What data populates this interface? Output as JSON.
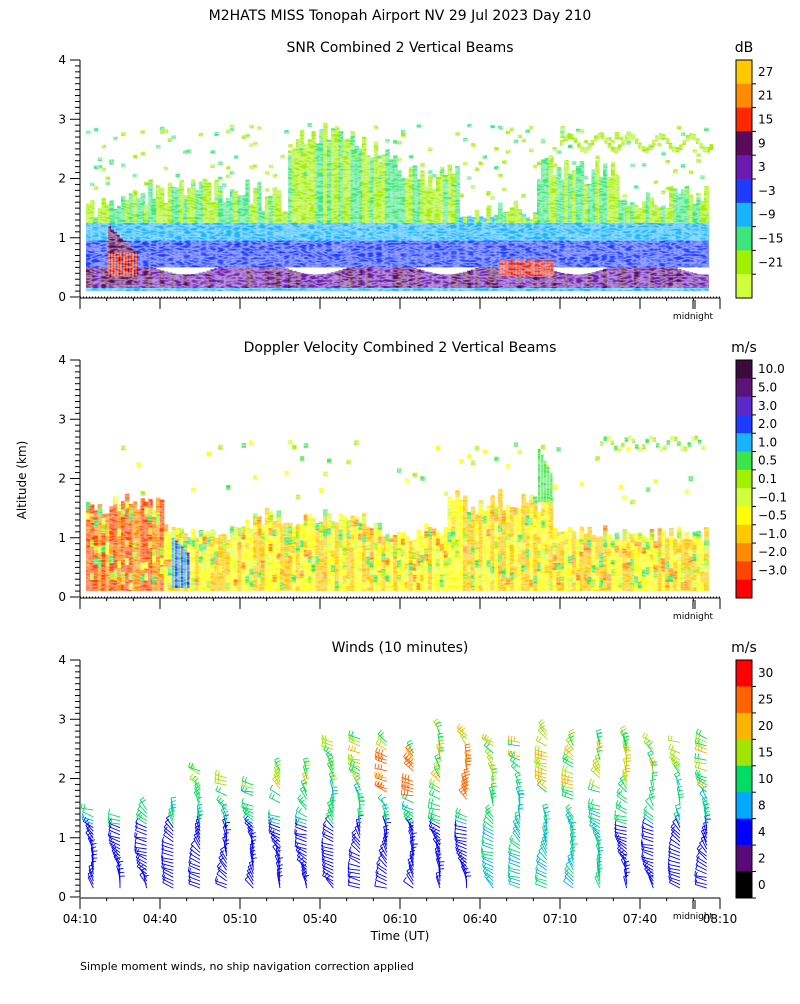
{
  "page": {
    "title": "M2HATS MISS Tonopah Airport NV  29 Jul 2023 Day 210",
    "y_axis_label": "Altitude (km)",
    "x_axis_label": "Time (UT)",
    "footnote": "Simple moment winds, no ship navigation correction applied",
    "midnight_label": "midnight"
  },
  "chart_data": [
    {
      "type": "heatmap",
      "title": "SNR Combined 2 Vertical Beams",
      "units": "dB",
      "ylim": [
        0,
        4
      ],
      "yticks": [
        "0",
        "1",
        "2",
        "3",
        "4"
      ],
      "colorbar": {
        "labels": [
          "27",
          "21",
          "15",
          "9",
          "3",
          "−3",
          "−9",
          "−15",
          "−21"
        ],
        "colors": [
          "#ffc800",
          "#ff8c00",
          "#ff2800",
          "#5a0a5a",
          "#6a1ab0",
          "#1e3cff",
          "#19b4ff",
          "#3ce67a",
          "#a0f000",
          "#d2ff3c"
        ]
      },
      "description_layers": [
        {
          "band_km": [
            0.1,
            0.55
          ],
          "level": "3 to 15 dB (purple/dark)"
        },
        {
          "band_km": [
            0.55,
            1.0
          ],
          "level": "-9 to 3 dB (blue)"
        },
        {
          "band_km": [
            1.0,
            1.6
          ],
          "level": "-15 to -9 dB (cyan/green)"
        },
        {
          "band_km": [
            1.6,
            2.8
          ],
          "level": "-21 to -15 dB (yellow-green), patchy"
        }
      ]
    },
    {
      "type": "heatmap",
      "title": "Doppler Velocity Combined 2 Vertical Beams",
      "units": "m/s",
      "ylim": [
        0,
        4
      ],
      "yticks": [
        "0",
        "1",
        "2",
        "3",
        "4"
      ],
      "colorbar": {
        "labels": [
          "10.0",
          "5.0",
          "3.0",
          "2.0",
          "1.0",
          "0.5",
          "0.1",
          "−0.1",
          "−0.5",
          "−1.0",
          "−2.0",
          "−3.0"
        ],
        "colors": [
          "#3c0a3c",
          "#5a1478",
          "#5a28c8",
          "#1e3cff",
          "#19b4ff",
          "#3ce64a",
          "#a0f000",
          "#d2ff3c",
          "#ffff00",
          "#ffc800",
          "#ff8c00",
          "#ff4600",
          "#ff0000"
        ]
      }
    },
    {
      "type": "wind_barbs",
      "title": "Winds (10 minutes)",
      "units": "m/s",
      "ylim": [
        0,
        4
      ],
      "yticks": [
        "0",
        "1",
        "2",
        "3",
        "4"
      ],
      "xticks": [
        "04:10",
        "04:40",
        "05:10",
        "05:40",
        "06:10",
        "06:40",
        "07:10",
        "07:40",
        "08:10"
      ],
      "xrange_hours": [
        4.1667,
        8.1667
      ],
      "colorbar": {
        "labels": [
          "30",
          "25",
          "20",
          "15",
          "10",
          "8",
          "4",
          "2",
          "0"
        ],
        "colors": [
          "#ff0000",
          "#ff6400",
          "#ffb400",
          "#a0e600",
          "#00dc64",
          "#00aaff",
          "#0000ff",
          "#5a0a78",
          "#000000"
        ]
      }
    }
  ]
}
